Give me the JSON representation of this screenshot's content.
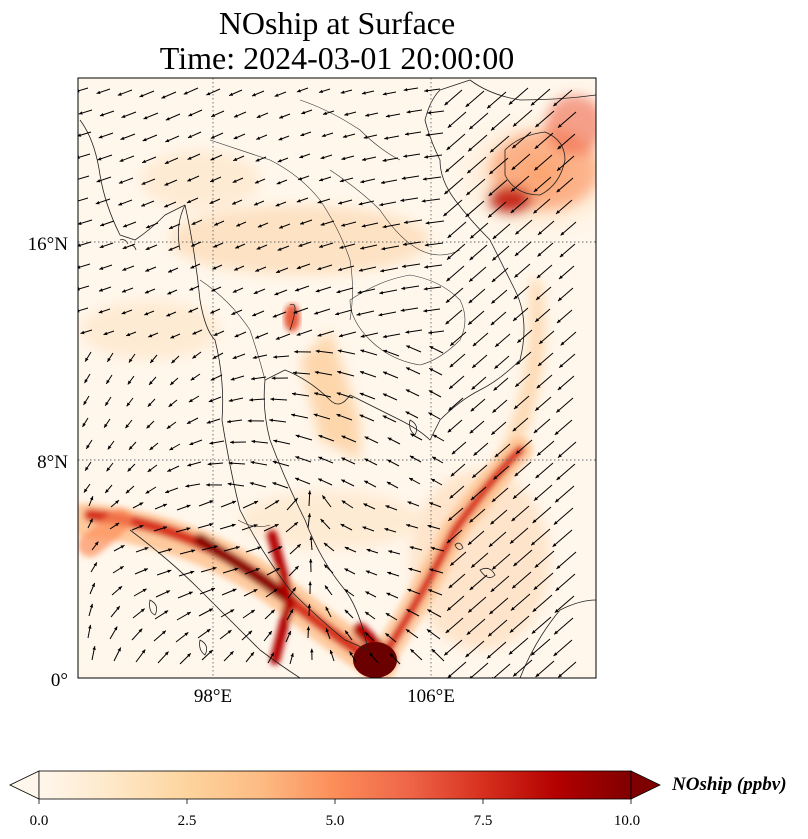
{
  "title": {
    "line1": "NOship at Surface",
    "line2": "Time: 2024-03-01 20:00:00"
  },
  "map": {
    "lon_range": [
      93,
      112
    ],
    "lat_range": [
      0,
      22
    ],
    "gridlines": true,
    "lon_ticks": [
      {
        "value": 98,
        "label": "98°E"
      },
      {
        "value": 106,
        "label": "106°E"
      }
    ],
    "lat_ticks": [
      {
        "value": 0,
        "label": "0°"
      },
      {
        "value": 8,
        "label": "8°N"
      },
      {
        "value": 16,
        "label": "16°N"
      }
    ],
    "field": "NOship",
    "vectors": "surface wind"
  },
  "colorbar": {
    "label": "NOship (ppbv)",
    "colormap": "OrRd",
    "extend": "both",
    "range": [
      0,
      10
    ],
    "ticks": [
      "0.0",
      "2.5",
      "5.0",
      "7.5",
      "10.0"
    ],
    "stops": [
      "#fff7ec",
      "#fee8c8",
      "#fdd49e",
      "#fdbb84",
      "#fc8d59",
      "#ef6548",
      "#d7301f",
      "#b30000",
      "#7f0000"
    ]
  }
}
